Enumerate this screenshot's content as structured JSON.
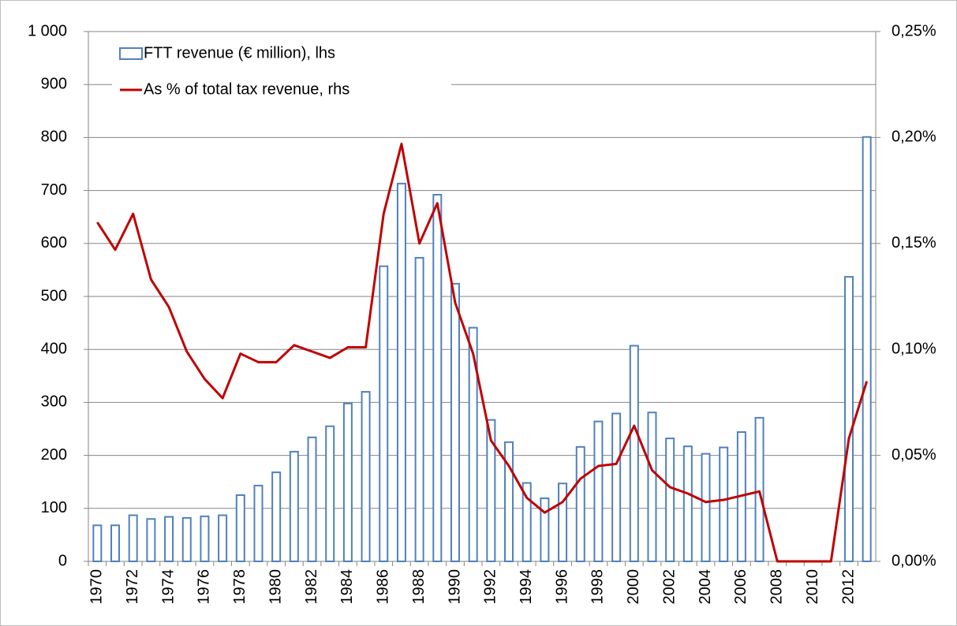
{
  "chart_data": {
    "type": "bar-line",
    "categories": [
      "1970",
      null,
      "1972",
      null,
      "1974",
      null,
      "1976",
      null,
      "1978",
      null,
      "1980",
      null,
      "1982",
      null,
      "1984",
      null,
      "1986",
      null,
      "1988",
      null,
      "1990",
      null,
      "1992",
      null,
      "1994",
      null,
      "1996",
      null,
      "1998",
      null,
      "2000",
      null,
      "2002",
      null,
      "2004",
      null,
      "2006",
      null,
      "2008",
      null,
      "2010",
      null,
      "2012",
      null
    ],
    "series": [
      {
        "name": "FTT revenue (€ million), lhs",
        "type": "bar",
        "color": "#4f81bd",
        "values": [
          68,
          68,
          87,
          80,
          84,
          82,
          85,
          87,
          125,
          143,
          168,
          207,
          234,
          255,
          298,
          320,
          557,
          713,
          573,
          692,
          524,
          441,
          267,
          225,
          148,
          119,
          147,
          216,
          264,
          279,
          407,
          281,
          232,
          217,
          203,
          215,
          244,
          271,
          null,
          null,
          null,
          null,
          537,
          801
        ]
      },
      {
        "name": "As % of total tax revenue, rhs",
        "type": "line",
        "axis": "y2",
        "color": "#c00000",
        "values": [
          0.16,
          0.147,
          0.164,
          0.133,
          0.12,
          0.099,
          0.086,
          0.077,
          0.098,
          0.094,
          0.094,
          0.102,
          0.099,
          0.096,
          0.101,
          0.101,
          0.164,
          0.197,
          0.15,
          0.169,
          0.122,
          0.098,
          0.057,
          0.045,
          0.03,
          0.023,
          0.028,
          0.039,
          0.045,
          0.046,
          0.064,
          0.043,
          0.035,
          0.032,
          0.028,
          0.029,
          0.031,
          0.033,
          0,
          0,
          0,
          0,
          0.058,
          0.085
        ]
      }
    ],
    "ylim": [
      0,
      1000
    ],
    "yticks": [
      0,
      100,
      200,
      300,
      400,
      500,
      600,
      700,
      800,
      900,
      {
        "value": 1000,
        "label": "1 000"
      }
    ],
    "y2lim": [
      0,
      0.25
    ],
    "y2ticks": [
      {
        "value": 0,
        "label": "0,00%"
      },
      {
        "value": 0.05,
        "label": "0,05%"
      },
      {
        "value": 0.1,
        "label": "0,10%"
      },
      {
        "value": 0.15,
        "label": "0,15%"
      },
      {
        "value": 0.2,
        "label": "0,20%"
      },
      {
        "value": 0.25,
        "label": "0,25%"
      }
    ],
    "grid": true,
    "legend": "upper left"
  }
}
